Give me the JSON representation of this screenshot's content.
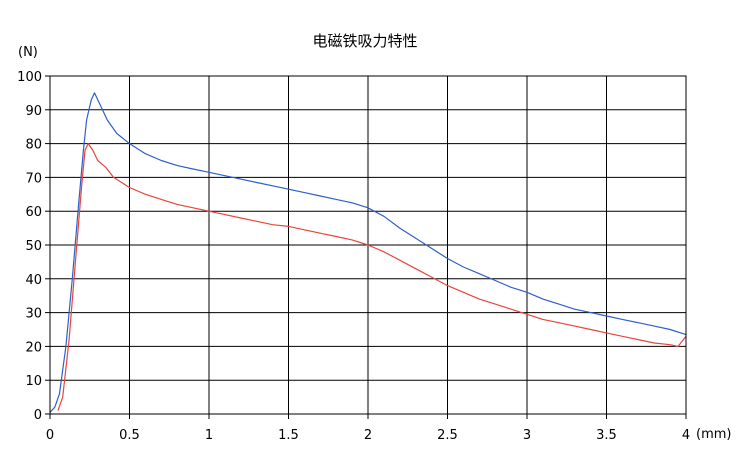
{
  "chart_data": {
    "type": "line",
    "title": "电磁铁吸力特性",
    "xlabel": "(mm)",
    "ylabel": "(N)",
    "xlim": [
      0,
      4
    ],
    "ylim": [
      0,
      100
    ],
    "xticks": [
      0,
      0.5,
      1,
      1.5,
      2,
      2.5,
      3,
      3.5,
      4
    ],
    "xtick_labels": [
      "0",
      "0.5",
      "1",
      "1.5",
      "2",
      "2.5",
      "3",
      "3.5",
      "4"
    ],
    "yticks": [
      0,
      10,
      20,
      30,
      40,
      50,
      60,
      70,
      80,
      90,
      100
    ],
    "ytick_labels": [
      "0",
      "10",
      "20",
      "30",
      "40",
      "50",
      "60",
      "70",
      "80",
      "90",
      "100"
    ],
    "grid": true,
    "legend": "none",
    "series": [
      {
        "color": "#2e5fc9",
        "x": [
          0.0,
          0.03,
          0.06,
          0.1,
          0.14,
          0.18,
          0.21,
          0.23,
          0.26,
          0.28,
          0.32,
          0.36,
          0.42,
          0.5,
          0.6,
          0.7,
          0.8,
          0.9,
          1.0,
          1.1,
          1.2,
          1.3,
          1.4,
          1.5,
          1.6,
          1.7,
          1.8,
          1.9,
          2.0,
          2.1,
          2.2,
          2.3,
          2.4,
          2.5,
          2.6,
          2.7,
          2.8,
          2.9,
          3.0,
          3.1,
          3.2,
          3.3,
          3.4,
          3.5,
          3.6,
          3.7,
          3.8,
          3.9,
          4.0
        ],
        "y": [
          0.5,
          2,
          6,
          20,
          40,
          62,
          78,
          87,
          93,
          95,
          91,
          87,
          83,
          80,
          77,
          75,
          73.5,
          72.5,
          71.5,
          70.5,
          69.5,
          68.5,
          67.5,
          66.5,
          65.5,
          64.5,
          63.5,
          62.5,
          61,
          58.5,
          55,
          52,
          49,
          46,
          43.5,
          41.5,
          39.5,
          37.5,
          36,
          34,
          32.5,
          31,
          30,
          29,
          28,
          27,
          26,
          25,
          23.5
        ]
      },
      {
        "color": "#e8453c",
        "x": [
          0.05,
          0.08,
          0.12,
          0.16,
          0.2,
          0.22,
          0.24,
          0.27,
          0.3,
          0.35,
          0.4,
          0.5,
          0.6,
          0.7,
          0.8,
          0.9,
          1.0,
          1.1,
          1.2,
          1.3,
          1.4,
          1.5,
          1.6,
          1.7,
          1.8,
          1.9,
          2.0,
          2.1,
          2.2,
          2.3,
          2.4,
          2.5,
          2.6,
          2.7,
          2.8,
          2.9,
          3.0,
          3.1,
          3.2,
          3.3,
          3.4,
          3.5,
          3.6,
          3.7,
          3.8,
          3.9,
          3.95,
          4.0
        ],
        "y": [
          1,
          5,
          22,
          45,
          68,
          78,
          80,
          78,
          75,
          73,
          70,
          67,
          65,
          63.5,
          62,
          61,
          60,
          59,
          58,
          57,
          56,
          55.5,
          54.5,
          53.5,
          52.5,
          51.5,
          50,
          48,
          45.5,
          43,
          40.5,
          38,
          36,
          34,
          32.5,
          31,
          29.5,
          28,
          27,
          26,
          25,
          24,
          23,
          22,
          21,
          20.5,
          20,
          23
        ]
      }
    ]
  }
}
